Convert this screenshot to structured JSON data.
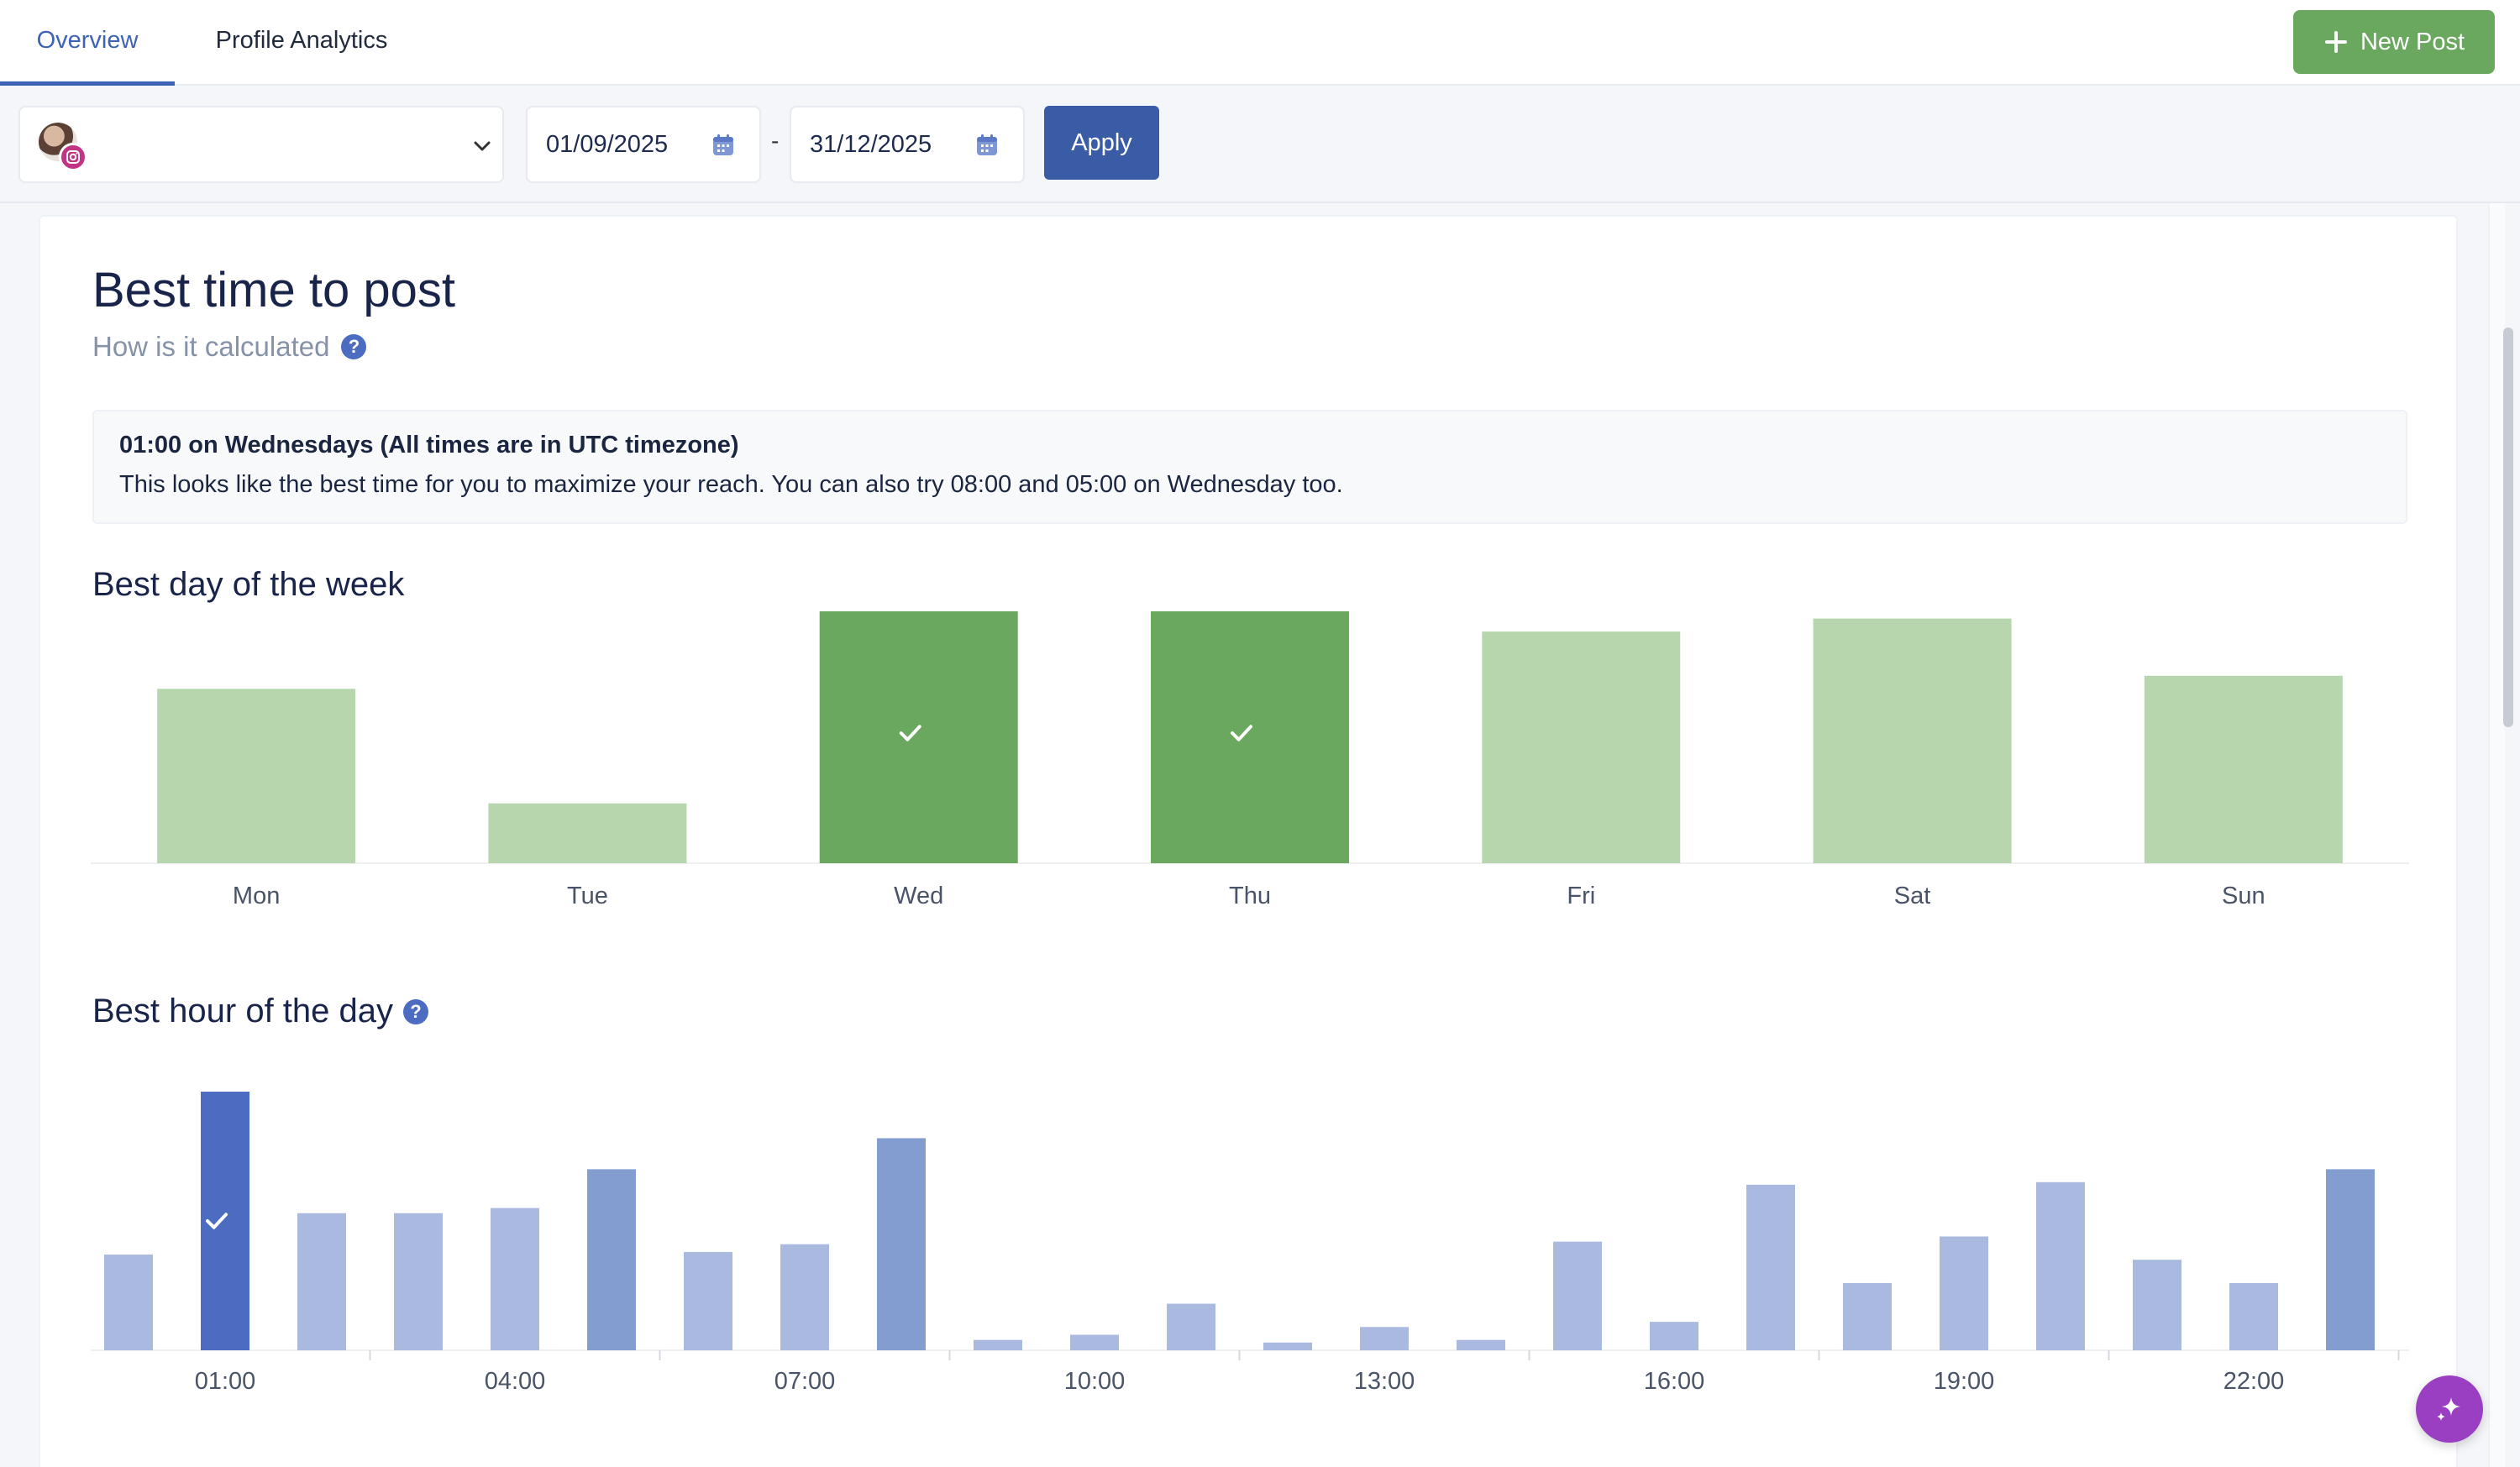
{
  "tabs": [
    {
      "label": "Overview",
      "active": true
    },
    {
      "label": "Profile Analytics",
      "active": false
    }
  ],
  "new_post_label": "New Post",
  "filters": {
    "start_date": "01/09/2025",
    "end_date": "31/12/2025",
    "separator": "-",
    "apply_label": "Apply"
  },
  "card": {
    "title": "Best time to post",
    "subtitle": "How is it calculated",
    "info_head": "01:00 on Wednesdays (All times are in UTC timezone)",
    "info_body": "This looks like the best time for you to maximize your reach. You can also try 08:00 and 05:00 on Wednesday too.",
    "week_title": "Best day of the week",
    "hour_title": "Best hour of the day"
  },
  "colors": {
    "accent": "#3d63b4",
    "green_best": "#69a85e",
    "green_light": "#b7d6ad",
    "blue_best": "#4b6cc0",
    "blue_mid": "#849dd0",
    "blue_light": "#a9b9df",
    "ai_purple": "#9a3fc1"
  },
  "chart_data": [
    {
      "type": "bar",
      "title": "Best day of the week",
      "categories": [
        "Mon",
        "Tue",
        "Wed",
        "Thu",
        "Fri",
        "Sat",
        "Sun"
      ],
      "values": [
        67,
        23,
        100,
        100,
        89,
        94,
        72
      ],
      "best": [
        "Wed",
        "Thu"
      ],
      "ylim": [
        0,
        100
      ]
    },
    {
      "type": "bar",
      "title": "Best hour of the day",
      "categories": [
        "00:00",
        "01:00",
        "02:00",
        "03:00",
        "04:00",
        "05:00",
        "06:00",
        "07:00",
        "08:00",
        "09:00",
        "10:00",
        "11:00",
        "12:00",
        "13:00",
        "14:00",
        "15:00",
        "16:00",
        "17:00",
        "18:00",
        "19:00",
        "20:00",
        "21:00",
        "22:00",
        "23:00"
      ],
      "tick_labels": [
        "01:00",
        "04:00",
        "07:00",
        "10:00",
        "13:00",
        "16:00",
        "19:00",
        "22:00"
      ],
      "values": [
        37,
        100,
        53,
        53,
        55,
        70,
        38,
        41,
        82,
        4,
        6,
        18,
        3,
        9,
        4,
        42,
        11,
        64,
        26,
        44,
        65,
        35,
        26,
        70
      ],
      "tier": [
        1,
        3,
        1,
        1,
        1,
        2,
        1,
        1,
        2,
        1,
        1,
        1,
        1,
        1,
        1,
        1,
        1,
        1,
        1,
        1,
        1,
        1,
        1,
        2
      ],
      "best": [
        "01:00"
      ],
      "ylim": [
        0,
        100
      ]
    }
  ]
}
